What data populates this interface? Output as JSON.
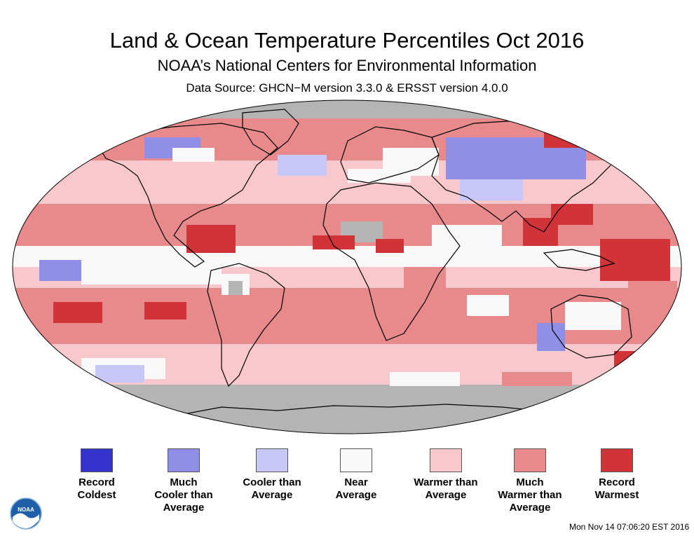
{
  "header": {
    "title": "Land & Ocean Temperature Percentiles Oct 2016",
    "subtitle": "NOAA’s National Centers for Environmental Information",
    "source": "Data Source: GHCN−M version 3.3.0 & ERSST version 4.0.0"
  },
  "colors": {
    "record_coldest": "#3333cc",
    "much_cooler": "#8f8fe8",
    "cooler": "#c8c8f8",
    "near": "#f8f8f8",
    "warmer": "#f8c8cc",
    "much_warmer": "#e88a8c",
    "record_warmest": "#d03438",
    "no_data": "#b4b4b4"
  },
  "legend": [
    {
      "key": "record_coldest",
      "label": "Record\nColdest"
    },
    {
      "key": "much_cooler",
      "label": "Much\nCooler than\nAverage"
    },
    {
      "key": "cooler",
      "label": "Cooler than\nAverage"
    },
    {
      "key": "near",
      "label": "Near\nAverage"
    },
    {
      "key": "warmer",
      "label": "Warmer than\nAverage"
    },
    {
      "key": "much_warmer",
      "label": "Much\nWarmer than\nAverage"
    },
    {
      "key": "record_warmest",
      "label": "Record\nWarmest"
    }
  ],
  "logo": {
    "text": "NOAA"
  },
  "footer": {
    "timestamp": "Mon Nov 14 07:06:20 EST 2016"
  }
}
